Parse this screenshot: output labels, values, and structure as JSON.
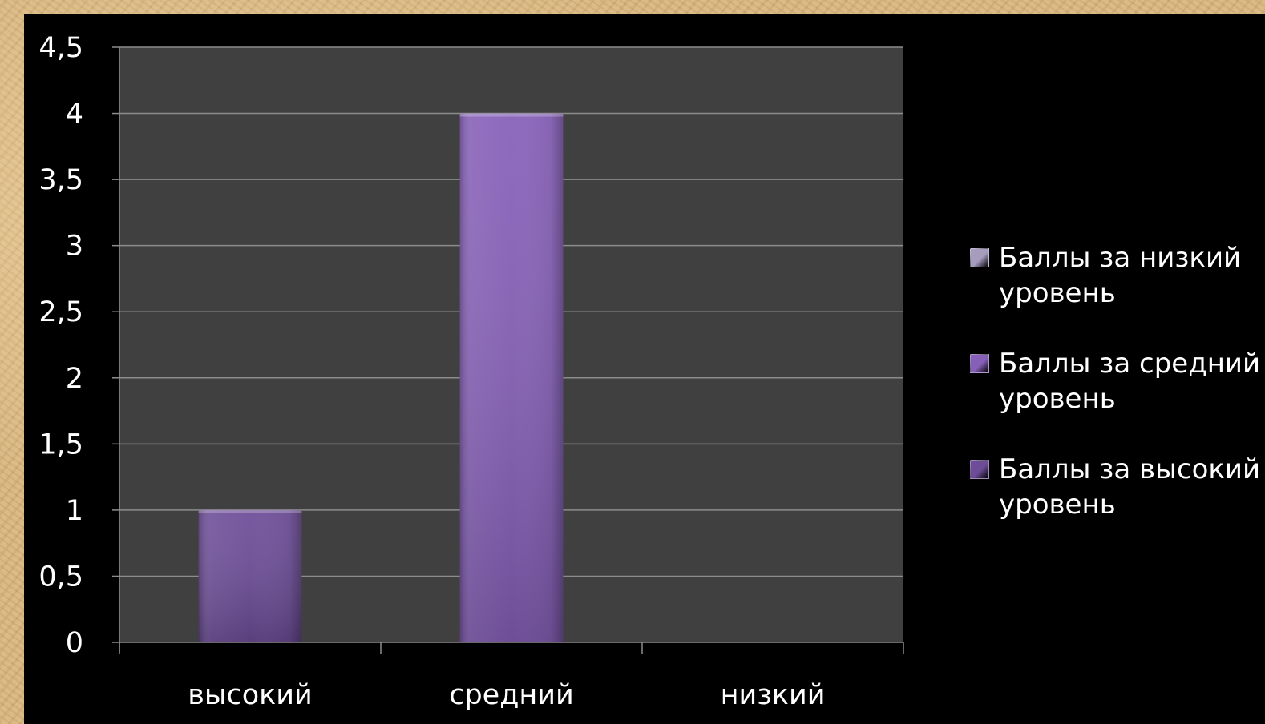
{
  "chart_data": {
    "type": "bar",
    "categories": [
      "высокий",
      "средний",
      "низкий"
    ],
    "series": [
      {
        "name": "Баллы за низкий уровень",
        "values": [
          0,
          0,
          0
        ],
        "color": "#a69cbe"
      },
      {
        "name": "Баллы за средний уровень",
        "values": [
          0,
          4,
          0
        ],
        "color": "#8660b8"
      },
      {
        "name": "Баллы за высокий уровень",
        "values": [
          1,
          0,
          0
        ],
        "color": "#6d4d98"
      }
    ],
    "title": "",
    "xlabel": "",
    "ylabel": "",
    "ylim": [
      0,
      4.5
    ],
    "yticks": [
      "0",
      "0,5",
      "1",
      "1,5",
      "2",
      "2,5",
      "3",
      "3,5",
      "4",
      "4,5"
    ],
    "grid": true,
    "legend_position": "right",
    "plot_background": "#404040",
    "panel_background": "#000000"
  }
}
